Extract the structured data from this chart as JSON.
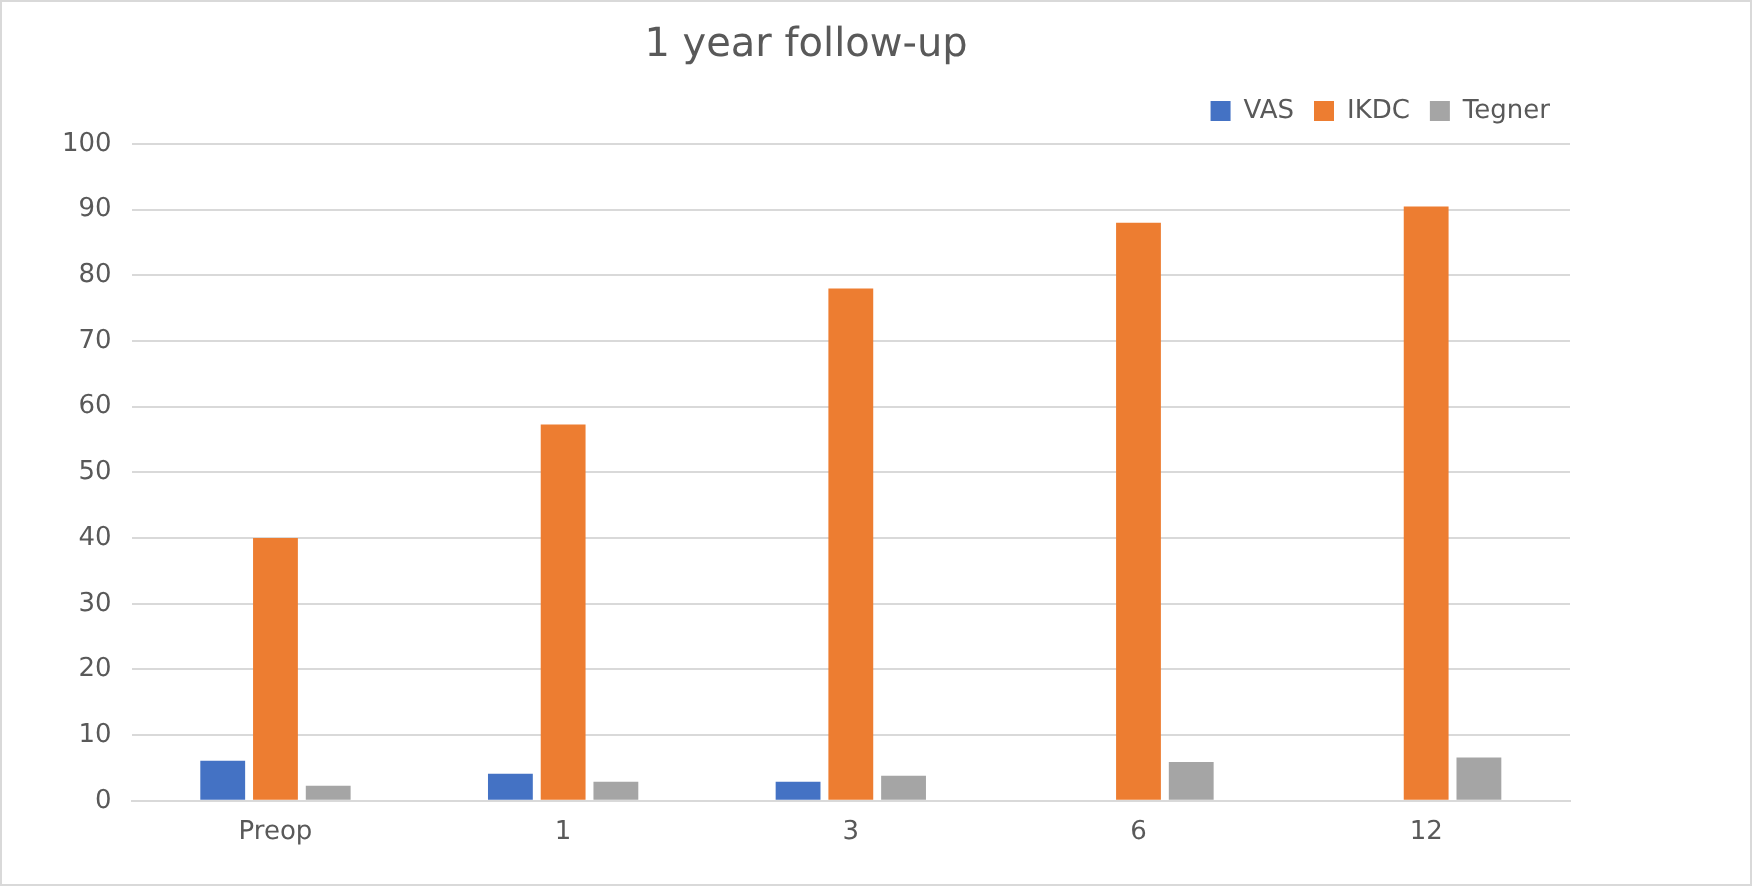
{
  "chart_data": {
    "type": "bar",
    "title": "1 year follow-up",
    "categories": [
      "Preop",
      "1",
      "3",
      "6",
      "12"
    ],
    "series": [
      {
        "name": "VAS",
        "color": "#4472c4",
        "values": [
          6.1,
          4.1,
          2.9,
          null,
          null
        ]
      },
      {
        "name": "IKDC",
        "color": "#ed7d31",
        "values": [
          40,
          57.3,
          78,
          88,
          90.5
        ]
      },
      {
        "name": "Tegner",
        "color": "#a5a5a5",
        "values": [
          2.3,
          2.9,
          3.8,
          5.9,
          6.6
        ]
      }
    ],
    "ylim": [
      0,
      100
    ],
    "yticks": [
      0,
      10,
      20,
      30,
      40,
      50,
      60,
      70,
      80,
      90,
      100
    ],
    "grid": "y",
    "legend": "top right"
  }
}
